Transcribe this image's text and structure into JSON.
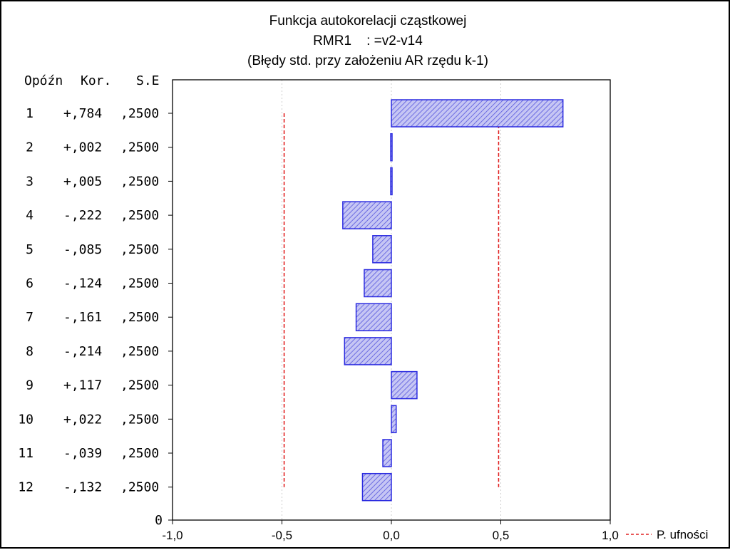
{
  "chart_data": {
    "type": "bar",
    "orientation": "horizontal",
    "title_lines": [
      "Funkcja autokorelacji cząstkowej",
      "RMR1    : =v2-v14",
      "(Błędy std. przy założeniu AR rzędu k-1)"
    ],
    "table_headers": {
      "lag": "Opóźn",
      "corr": "Kor.",
      "se": "S.E"
    },
    "rows": [
      {
        "lag": "1",
        "corr_label": "+,784",
        "se_label": ",2500",
        "value": 0.784
      },
      {
        "lag": "2",
        "corr_label": "+,002",
        "se_label": ",2500",
        "value": 0.002
      },
      {
        "lag": "3",
        "corr_label": "+,005",
        "se_label": ",2500",
        "value": 0.005
      },
      {
        "lag": "4",
        "corr_label": "-,222",
        "se_label": ",2500",
        "value": -0.222
      },
      {
        "lag": "5",
        "corr_label": "-,085",
        "se_label": ",2500",
        "value": -0.085
      },
      {
        "lag": "6",
        "corr_label": "-,124",
        "se_label": ",2500",
        "value": -0.124
      },
      {
        "lag": "7",
        "corr_label": "-,161",
        "se_label": ",2500",
        "value": -0.161
      },
      {
        "lag": "8",
        "corr_label": "-,214",
        "se_label": ",2500",
        "value": -0.214
      },
      {
        "lag": "9",
        "corr_label": "+,117",
        "se_label": ",2500",
        "value": 0.117
      },
      {
        "lag": "10",
        "corr_label": "+,022",
        "se_label": ",2500",
        "value": 0.022
      },
      {
        "lag": "11",
        "corr_label": "-,039",
        "se_label": ",2500",
        "value": -0.039
      },
      {
        "lag": "12",
        "corr_label": "-,132",
        "se_label": ",2500",
        "value": -0.132
      }
    ],
    "zero_row_label": "0",
    "x_ticks": [
      {
        "value": -1.0,
        "label": "-1,0"
      },
      {
        "value": -0.5,
        "label": "-0,5"
      },
      {
        "value": 0.0,
        "label": "0,0"
      },
      {
        "value": 0.5,
        "label": "0,5"
      },
      {
        "value": 1.0,
        "label": "1,0"
      }
    ],
    "xlim": [
      -1.0,
      1.0
    ],
    "confidence_limits": [
      -0.49,
      0.49
    ],
    "legend": {
      "label": "P. ufności",
      "position": "bottom-right"
    },
    "colors": {
      "bar_stroke": "#2b2be0",
      "bar_fill": "#c6c6f4",
      "bar_hatch": "#5555dd",
      "confidence_line": "#e02020",
      "grid": "#cccccc",
      "axis": "#000000"
    },
    "grid": {
      "vertical": true,
      "horizontal": false
    }
  }
}
